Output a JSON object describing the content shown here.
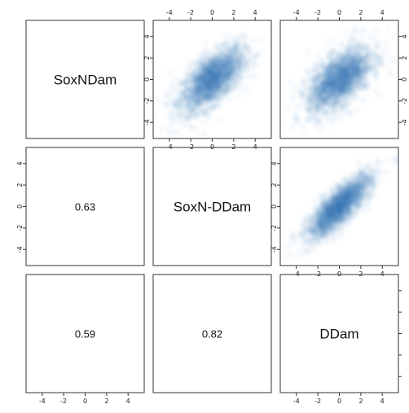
{
  "chart_data": {
    "type": "scatter-matrix",
    "variables": [
      "SoxNDam",
      "SoxN-DDam",
      "DDam"
    ],
    "correlations": [
      {
        "row": 1,
        "col": 0,
        "pair": [
          "SoxN-DDam",
          "SoxNDam"
        ],
        "value": "0.63"
      },
      {
        "row": 2,
        "col": 0,
        "pair": [
          "DDam",
          "SoxNDam"
        ],
        "value": "0.59"
      },
      {
        "row": 2,
        "col": 1,
        "pair": [
          "DDam",
          "SoxN-DDam"
        ],
        "value": "0.82"
      }
    ],
    "density_panels": [
      {
        "row": 0,
        "col": 1,
        "x": "SoxN-DDam",
        "y": "SoxNDam",
        "r": 0.63
      },
      {
        "row": 0,
        "col": 2,
        "x": "DDam",
        "y": "SoxNDam",
        "r": 0.59
      },
      {
        "row": 1,
        "col": 2,
        "x": "DDam",
        "y": "SoxN-DDam",
        "r": 0.82
      }
    ],
    "axis_range": [
      -5.5,
      5.5
    ],
    "ticks": [
      -4,
      -2,
      0,
      2,
      4
    ],
    "colors": {
      "density_low": "#e8f1fb",
      "density_mid": "#6fa6d6",
      "density_high": "#08306b",
      "frame": "#333333"
    },
    "grid": false
  }
}
